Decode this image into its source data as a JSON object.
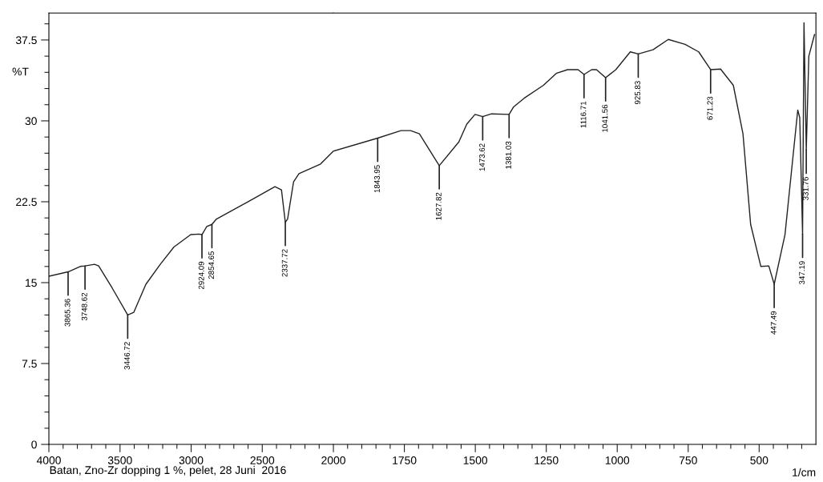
{
  "chart_data": [
    {
      "type": "line",
      "ylabel": "%T",
      "x": [
        4000,
        3865,
        3780,
        3746,
        3679,
        3650,
        3555,
        3446,
        3403,
        3318,
        3217,
        3121,
        3003,
        2946,
        2924,
        2890,
        2854,
        2822,
        2614,
        2411,
        2365,
        2338,
        2322,
        2280,
        2242,
        2090,
        2000
      ],
      "series": [
        {
          "color": "#222222",
          "values": [
            15.6,
            16.0,
            16.5,
            16.55,
            16.7,
            16.55,
            14.5,
            12.0,
            12.25,
            14.85,
            16.7,
            18.3,
            19.45,
            19.5,
            19.45,
            20.2,
            20.4,
            20.9,
            22.4,
            23.9,
            23.6,
            20.6,
            20.9,
            24.35,
            25.1,
            26.0,
            27.2
          ]
        }
      ],
      "xlim": [
        4000,
        2000
      ],
      "xticks": [
        4000,
        {
          "value": 3900,
          "label": null
        },
        {
          "value": 3800,
          "label": null
        },
        {
          "value": 3700,
          "label": null
        },
        {
          "value": 3600,
          "label": null
        },
        3500,
        {
          "value": 3400,
          "label": null
        },
        {
          "value": 3300,
          "label": null
        },
        {
          "value": 3200,
          "label": null
        },
        {
          "value": 3100,
          "label": null
        },
        3000,
        {
          "value": 2900,
          "label": null
        },
        {
          "value": 2800,
          "label": null
        },
        {
          "value": 2700,
          "label": null
        },
        {
          "value": 2600,
          "label": null
        },
        2500,
        {
          "value": 2400,
          "label": null
        },
        {
          "value": 2300,
          "label": null
        },
        {
          "value": 2200,
          "label": null
        },
        {
          "value": 2100,
          "label": null
        }
      ],
      "ylim": [
        0,
        40
      ],
      "yticks": [
        0,
        {
          "value": 1.5,
          "label": null
        },
        {
          "value": 3,
          "label": null
        },
        {
          "value": 4.5,
          "label": null
        },
        {
          "value": 6,
          "label": null
        },
        7.5,
        {
          "value": 9,
          "label": null
        },
        {
          "value": 10.5,
          "label": null
        },
        {
          "value": 12,
          "label": null
        },
        {
          "value": 13.5,
          "label": null
        },
        15,
        {
          "value": 16.5,
          "label": null
        },
        {
          "value": 18,
          "label": null
        },
        {
          "value": 19.5,
          "label": null
        },
        {
          "value": 21,
          "label": null
        },
        22.5,
        {
          "value": 24,
          "label": null
        },
        {
          "value": 25.5,
          "label": null
        },
        {
          "value": 27,
          "label": null
        },
        {
          "value": 28.5,
          "label": null
        },
        30,
        {
          "value": 31.5,
          "label": null
        },
        {
          "value": 33,
          "label": null
        },
        {
          "value": 34.5,
          "label": null
        },
        {
          "value": 36,
          "label": null
        },
        37.5,
        {
          "value": 39,
          "label": null
        }
      ],
      "grid": false,
      "annotations": [
        {
          "text": "3865.36",
          "x": 3865,
          "y": 16.0
        },
        {
          "text": "3748.62",
          "x": 3746,
          "y": 16.55
        },
        {
          "text": "3446.72",
          "x": 3446,
          "y": 12.0
        },
        {
          "text": "2924.09",
          "x": 2924,
          "y": 19.45
        },
        {
          "text": "2854.65",
          "x": 2854,
          "y": 20.4
        },
        {
          "text": "2337.72",
          "x": 2338,
          "y": 20.6
        },
        "Batan, Zno-Zr dopping 1 %, pelet, 28 Juni  2016"
      ]
    },
    {
      "type": "line",
      "xlabel": "1/cm",
      "tick_labels": "x",
      "x": [
        2000,
        1844,
        1762,
        1728,
        1697,
        1627,
        1558,
        1530,
        1501,
        1474,
        1443,
        1381,
        1365,
        1328,
        1260,
        1215,
        1175,
        1138,
        1117,
        1090,
        1073,
        1041,
        1005,
        954,
        926,
        874,
        820,
        761,
        713,
        671,
        636,
        591,
        557,
        530,
        494,
        466,
        447,
        421,
        409,
        364,
        357,
        347,
        342,
        334,
        325,
        305
      ],
      "series": [
        {
          "color": "#222222",
          "values": [
            27.2,
            28.4,
            29.1,
            29.1,
            28.8,
            25.85,
            28.05,
            29.7,
            30.6,
            30.4,
            30.65,
            30.6,
            31.3,
            32.1,
            33.3,
            34.4,
            34.75,
            34.75,
            34.3,
            34.75,
            34.75,
            34.0,
            34.75,
            36.4,
            36.2,
            36.6,
            37.55,
            37.1,
            36.4,
            34.75,
            34.8,
            33.3,
            28.8,
            20.4,
            16.5,
            16.55,
            14.85,
            18.0,
            19.45,
            31.0,
            30.3,
            19.5,
            39.1,
            27.3,
            36.0,
            38.0
          ]
        }
      ],
      "xlim": [
        2000,
        300
      ],
      "xticks": [
        2000,
        {
          "value": 1950,
          "label": null
        },
        {
          "value": 1900,
          "label": null
        },
        {
          "value": 1850,
          "label": null
        },
        {
          "value": 1800,
          "label": null
        },
        1750,
        {
          "value": 1700,
          "label": null
        },
        {
          "value": 1650,
          "label": null
        },
        {
          "value": 1600,
          "label": null
        },
        {
          "value": 1550,
          "label": null
        },
        1500,
        {
          "value": 1450,
          "label": null
        },
        {
          "value": 1400,
          "label": null
        },
        {
          "value": 1350,
          "label": null
        },
        {
          "value": 1300,
          "label": null
        },
        1250,
        {
          "value": 1200,
          "label": null
        },
        {
          "value": 1150,
          "label": null
        },
        {
          "value": 1100,
          "label": null
        },
        {
          "value": 1050,
          "label": null
        },
        1000,
        {
          "value": 950,
          "label": null
        },
        {
          "value": 900,
          "label": null
        },
        {
          "value": 850,
          "label": null
        },
        {
          "value": 800,
          "label": null
        },
        750,
        {
          "value": 700,
          "label": null
        },
        {
          "value": 650,
          "label": null
        },
        {
          "value": 600,
          "label": null
        },
        {
          "value": 550,
          "label": null
        },
        500,
        {
          "value": 450,
          "label": null
        },
        {
          "value": 400,
          "label": null
        },
        {
          "value": 350,
          "label": null
        }
      ],
      "ylim": [
        0,
        40
      ],
      "grid": false,
      "annotations": [
        {
          "text": "1843.95",
          "x": 1844,
          "y": 28.4
        },
        {
          "text": "1627.82",
          "x": 1627,
          "y": 25.85
        },
        {
          "text": "1473.62",
          "x": 1474,
          "y": 30.4
        },
        {
          "text": "1381.03",
          "x": 1381,
          "y": 30.6
        },
        {
          "text": "1116.71",
          "x": 1117,
          "y": 34.3
        },
        {
          "text": "1041.56",
          "x": 1041,
          "y": 34.0
        },
        {
          "text": "925.83",
          "x": 926,
          "y": 36.2
        },
        {
          "text": "671.23",
          "x": 671,
          "y": 34.75
        },
        {
          "text": "447.49",
          "x": 447,
          "y": 14.85
        },
        {
          "text": "347.19",
          "x": 347,
          "y": 19.5
        },
        {
          "text": "331.76",
          "x": 334,
          "y": 27.3
        }
      ]
    }
  ]
}
